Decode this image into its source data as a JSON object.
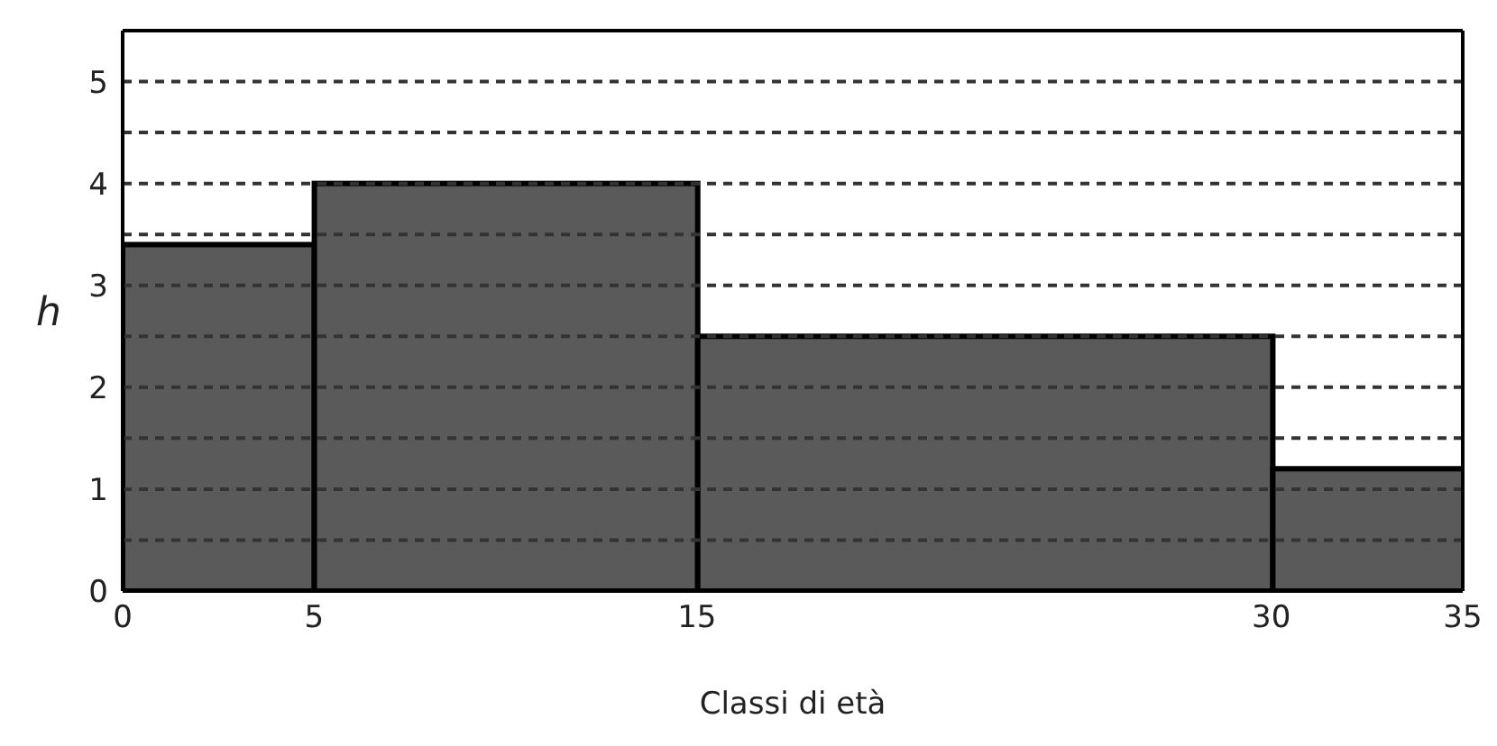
{
  "chart_data": {
    "type": "histogram",
    "xlabel": "Classi di età",
    "ylabel": "h",
    "bins": [
      0,
      5,
      15,
      30,
      35
    ],
    "values": [
      3.4,
      4,
      2.5,
      1.2
    ],
    "color": "#5a5a5a",
    "xlim": [
      0,
      35
    ],
    "xticks": [
      0,
      5,
      15,
      30,
      35
    ],
    "ylim": [
      0,
      5.5
    ],
    "yticks": [
      0,
      {
        "value": 0.5,
        "label": null
      },
      1,
      {
        "value": 1.5,
        "label": null
      },
      2,
      {
        "value": 2.5,
        "label": null
      },
      3,
      {
        "value": 3.5,
        "label": null
      },
      4,
      {
        "value": 4.5,
        "label": null
      },
      5
    ],
    "grid": "y"
  }
}
